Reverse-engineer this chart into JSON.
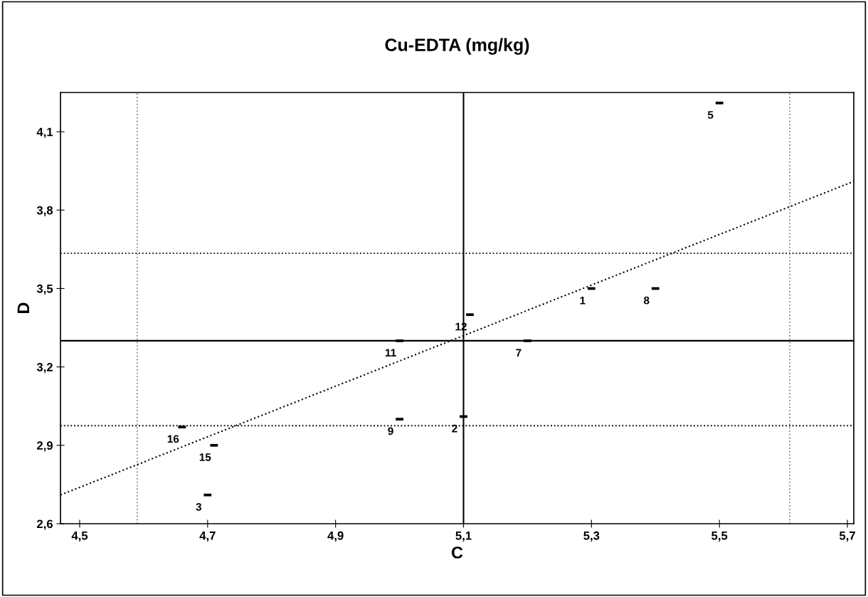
{
  "chart_data": {
    "type": "scatter",
    "title": "Cu-EDTA (mg/kg)",
    "xlabel": "C",
    "ylabel": "D",
    "x": [
      4.66,
      4.71,
      4.7,
      5.0,
      5.1,
      5.0,
      5.2,
      5.11,
      5.3,
      5.4,
      5.5
    ],
    "series": [
      {
        "color": "#000000",
        "values": [
          2.97,
          2.9,
          2.71,
          3.0,
          3.01,
          3.3,
          3.3,
          3.4,
          3.5,
          3.5,
          4.21
        ]
      },
      {
        "type": "line",
        "color": "#000000",
        "line_style": "dotted",
        "x": [
          4.47,
          5.71
        ],
        "values": [
          2.71,
          3.91
        ]
      }
    ],
    "annotations": [
      {
        "text": "16",
        "x": 4.66,
        "y": 2.97
      },
      {
        "text": "15",
        "x": 4.71,
        "y": 2.9
      },
      {
        "text": "3",
        "x": 4.7,
        "y": 2.71
      },
      {
        "text": "9",
        "x": 5.0,
        "y": 3.0
      },
      {
        "text": "2",
        "x": 5.1,
        "y": 3.01
      },
      {
        "text": "11",
        "x": 5.0,
        "y": 3.3
      },
      {
        "text": "7",
        "x": 5.2,
        "y": 3.3
      },
      {
        "text": "12",
        "x": 5.11,
        "y": 3.4
      },
      {
        "text": "1",
        "x": 5.3,
        "y": 3.5
      },
      {
        "text": "8",
        "x": 5.4,
        "y": 3.5
      },
      {
        "text": "5",
        "x": 5.5,
        "y": 4.21
      }
    ],
    "ref_lines": [
      {
        "axis": "y",
        "value": 3.3,
        "color": "#000000",
        "line_style": "solid"
      },
      {
        "axis": "x",
        "value": 5.1,
        "color": "#000000",
        "line_style": "solid"
      },
      {
        "axis": "y",
        "value": 3.635,
        "color": "#000000",
        "line_style": "dotted"
      },
      {
        "axis": "y",
        "value": 2.975,
        "color": "#000000",
        "line_style": "dotted"
      },
      {
        "axis": "x",
        "value": 4.59,
        "color": "#888888",
        "line_style": "dotted"
      },
      {
        "axis": "x",
        "value": 5.61,
        "color": "#888888",
        "line_style": "dotted"
      }
    ],
    "xlim": [
      4.47,
      5.71
    ],
    "ylim": [
      2.6,
      4.25
    ],
    "xticks": [
      {
        "value": 4.5,
        "label": "4,5"
      },
      {
        "value": 4.7,
        "label": "4,7"
      },
      {
        "value": 4.9,
        "label": "4,9"
      },
      {
        "value": 5.1,
        "label": "5,1"
      },
      {
        "value": 5.3,
        "label": "5,3"
      },
      {
        "value": 5.5,
        "label": "5,5"
      },
      {
        "value": 5.7,
        "label": "5,7"
      }
    ],
    "yticks": [
      {
        "value": 2.6,
        "label": "2,6"
      },
      {
        "value": 2.9,
        "label": "2,9"
      },
      {
        "value": 3.2,
        "label": "3,2"
      },
      {
        "value": 3.5,
        "label": "3,5"
      },
      {
        "value": 3.8,
        "label": "3,8"
      },
      {
        "value": 4.1,
        "label": "4,1"
      }
    ],
    "grid": false
  }
}
